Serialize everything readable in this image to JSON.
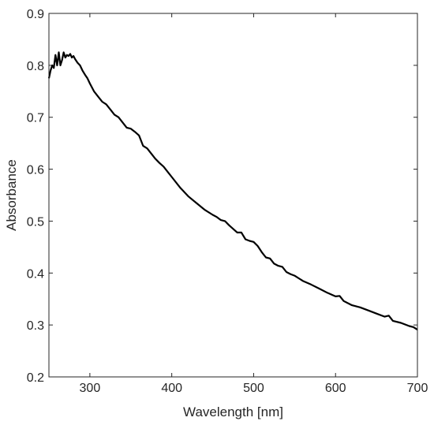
{
  "chart_data": {
    "type": "line",
    "xlabel": "Wavelength [nm]",
    "ylabel": "Absorbance",
    "xlim": [
      250,
      700
    ],
    "ylim": [
      0.2,
      0.9
    ],
    "xticks": [
      300,
      400,
      500,
      600,
      700
    ],
    "xtick_labels": [
      "300",
      "400",
      "500",
      "600",
      "700"
    ],
    "yticks": [
      0.2,
      0.3,
      0.4,
      0.5,
      0.6,
      0.7,
      0.8,
      0.9
    ],
    "ytick_labels": [
      "0.2",
      "0.3",
      "0.4",
      "0.5",
      "0.6",
      "0.7",
      "0.8",
      "0.9"
    ],
    "grid": false,
    "box": true,
    "colors": {
      "line": "#000000",
      "axes": "#262626",
      "background": "#ffffff"
    },
    "series": [
      {
        "x": [
          250,
          252,
          254,
          256,
          258,
          260,
          262,
          264,
          266,
          268,
          270,
          272,
          274,
          276,
          278,
          280,
          282,
          285,
          288,
          291,
          294,
          297,
          300,
          305,
          310,
          315,
          320,
          325,
          330,
          335,
          340,
          345,
          350,
          355,
          360,
          365,
          370,
          375,
          380,
          385,
          390,
          395,
          400,
          410,
          420,
          430,
          440,
          450,
          455,
          460,
          465,
          470,
          475,
          480,
          485,
          490,
          495,
          500,
          505,
          510,
          515,
          520,
          525,
          530,
          535,
          540,
          545,
          550,
          560,
          570,
          580,
          590,
          600,
          605,
          610,
          620,
          630,
          640,
          650,
          660,
          665,
          670,
          680,
          690,
          695,
          700
        ],
        "y": [
          0.775,
          0.79,
          0.8,
          0.795,
          0.82,
          0.8,
          0.825,
          0.8,
          0.81,
          0.825,
          0.815,
          0.82,
          0.818,
          0.822,
          0.815,
          0.818,
          0.812,
          0.805,
          0.8,
          0.79,
          0.782,
          0.775,
          0.765,
          0.75,
          0.74,
          0.73,
          0.725,
          0.715,
          0.705,
          0.7,
          0.69,
          0.68,
          0.678,
          0.672,
          0.665,
          0.645,
          0.64,
          0.63,
          0.62,
          0.612,
          0.605,
          0.595,
          0.585,
          0.565,
          0.548,
          0.535,
          0.522,
          0.512,
          0.508,
          0.502,
          0.5,
          0.492,
          0.485,
          0.478,
          0.478,
          0.465,
          0.462,
          0.46,
          0.452,
          0.44,
          0.43,
          0.428,
          0.418,
          0.414,
          0.412,
          0.402,
          0.398,
          0.395,
          0.385,
          0.378,
          0.37,
          0.362,
          0.355,
          0.356,
          0.346,
          0.338,
          0.334,
          0.328,
          0.322,
          0.316,
          0.318,
          0.308,
          0.304,
          0.298,
          0.296,
          0.291
        ]
      }
    ]
  }
}
